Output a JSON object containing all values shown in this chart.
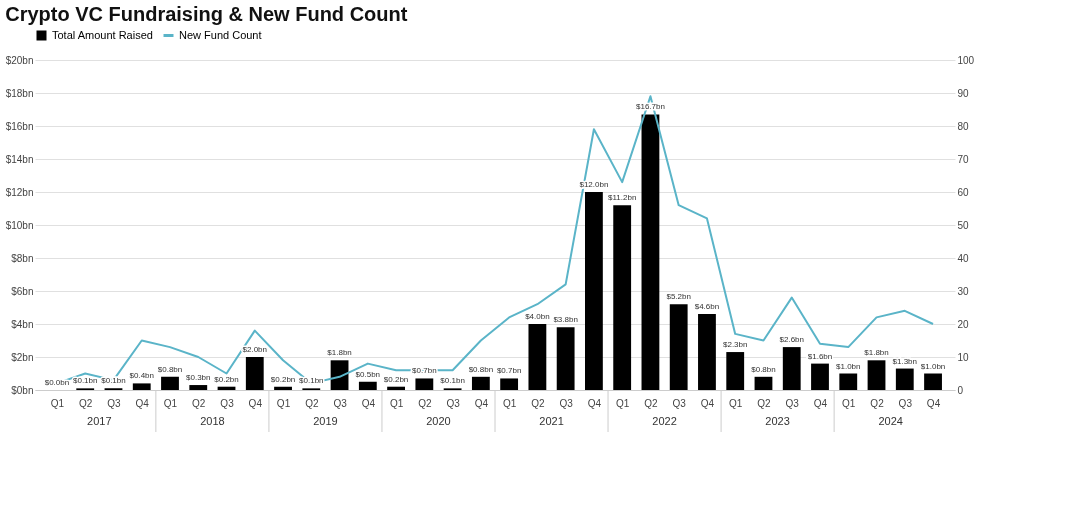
{
  "chart_data": {
    "type": "bar",
    "title": "Crypto VC Fundraising & New Fund Count",
    "categories": [
      "Q1",
      "Q2",
      "Q3",
      "Q4",
      "Q1",
      "Q2",
      "Q3",
      "Q4",
      "Q1",
      "Q2",
      "Q3",
      "Q4",
      "Q1",
      "Q2",
      "Q3",
      "Q4",
      "Q1",
      "Q2",
      "Q3",
      "Q4",
      "Q1",
      "Q2",
      "Q3",
      "Q4",
      "Q1",
      "Q2",
      "Q3",
      "Q4",
      "Q1",
      "Q2",
      "Q3",
      "Q4"
    ],
    "annotations": [
      "2017",
      "2018",
      "2019",
      "2020",
      "2021",
      "2022",
      "2023",
      "2024"
    ],
    "series": [
      {
        "name": "Total Amount Raised",
        "color": "#000000",
        "values": [
          0.0,
          0.1,
          0.1,
          0.4,
          0.8,
          0.3,
          0.2,
          2.0,
          0.2,
          0.1,
          1.8,
          0.5,
          0.2,
          0.7,
          0.1,
          0.8,
          0.7,
          4.0,
          3.8,
          12.0,
          11.2,
          16.7,
          5.2,
          4.6,
          2.3,
          0.8,
          2.6,
          1.6,
          1.0,
          1.8,
          1.3,
          1.0
        ],
        "value_labels": [
          "$0.0bn",
          "$0.1bn",
          "$0.1bn",
          "$0.4bn",
          "$0.8bn",
          "$0.3bn",
          "$0.2bn",
          "$2.0bn",
          "$0.2bn",
          "$0.1bn",
          "$1.8bn",
          "$0.5bn",
          "$0.2bn",
          "$0.7bn",
          "$0.1bn",
          "$0.8bn",
          "$0.7bn",
          "$4.0bn",
          "$3.8bn",
          "$12.0bn",
          "$11.2bn",
          "$16.7bn",
          "$5.2bn",
          "$4.6bn",
          "$2.3bn",
          "$0.8bn",
          "$2.6bn",
          "$1.6bn",
          "$1.0bn",
          "$1.8bn",
          "$1.3bn",
          "$1.0bn"
        ]
      },
      {
        "name": "New Fund Count",
        "type": "line",
        "axis": "y2",
        "color": "#5ab4c8",
        "values": [
          2,
          5,
          3,
          15,
          13,
          10,
          5,
          18,
          9,
          2,
          4,
          8,
          6,
          6,
          6,
          15,
          22,
          26,
          32,
          79,
          63,
          89,
          56,
          52,
          17,
          15,
          28,
          14,
          13,
          22,
          24,
          20
        ]
      }
    ],
    "ylim": [
      0,
      20
    ],
    "yticks": [
      {
        "value": 0,
        "label": "$0bn"
      },
      {
        "value": 2,
        "label": "$2bn"
      },
      {
        "value": 4,
        "label": "$4bn"
      },
      {
        "value": 6,
        "label": "$6bn"
      },
      {
        "value": 8,
        "label": "$8bn"
      },
      {
        "value": 10,
        "label": "$10bn"
      },
      {
        "value": 12,
        "label": "$12bn"
      },
      {
        "value": 14,
        "label": "$14bn"
      },
      {
        "value": 16,
        "label": "$16bn"
      },
      {
        "value": 18,
        "label": "$18bn"
      },
      {
        "value": 20,
        "label": "$20bn"
      }
    ],
    "y2lim": [
      0,
      100
    ],
    "y2ticks": [
      0,
      10,
      20,
      30,
      40,
      50,
      60,
      70,
      80,
      90,
      100
    ],
    "grid": "y",
    "legend": "top",
    "marker": "none",
    "line_style": "solid"
  }
}
